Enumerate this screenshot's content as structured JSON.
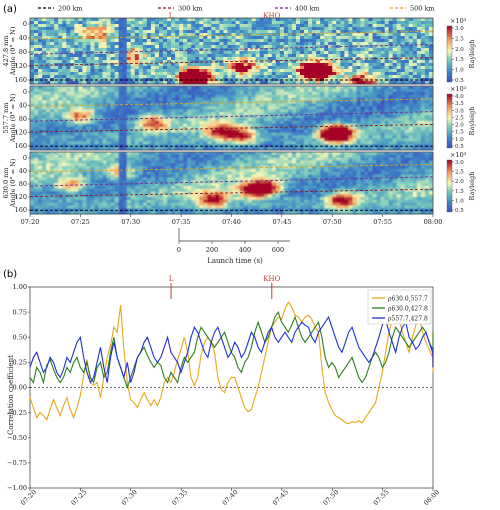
{
  "figure_labels": {
    "a": "(a)",
    "b": "(b)"
  },
  "chart_data": [
    {
      "type": "heatmap",
      "panel": "(a)",
      "legend": [
        {
          "label": "200 km",
          "color": "#000000"
        },
        {
          "label": "300 km",
          "color": "#8b1a1a"
        },
        {
          "label": "400 km",
          "color": "#7b2a8e"
        },
        {
          "label": "500 km",
          "color": "#e6a11a"
        }
      ],
      "markers": [
        {
          "label": "L",
          "time": "07:34"
        },
        {
          "label": "KHO",
          "time": "07:44"
        }
      ],
      "x_time_ticks": [
        "07:20",
        "07:25",
        "07:30",
        "07:35",
        "07:40",
        "07:45",
        "07:50",
        "07:55",
        "08:00"
      ],
      "y_ticks": [
        "0",
        "40",
        "80",
        "120",
        "160"
      ],
      "subplots": [
        {
          "ylabel": "427.8 nm\nAngle (0° = N)",
          "cbar_label": "Rayleigh",
          "cbar_exp": "×10³",
          "cbar_ticks": [
            "0.5",
            "1.0",
            "1.5",
            "2.0",
            "2.5",
            "3.0"
          ]
        },
        {
          "ylabel": "557.7 nm\nAngle (0° = N)",
          "cbar_label": "Rayleigh",
          "cbar_exp": "×10³",
          "cbar_ticks": [
            "0.5",
            "1.0",
            "1.5",
            "2.0",
            "2.5",
            "3.0",
            "3.5",
            "4.0"
          ]
        },
        {
          "ylabel": "630.0 nm\nAngle (0° = N)",
          "cbar_label": "Rayleigh",
          "cbar_exp": "×10³",
          "cbar_ticks": [
            "0.5",
            "1.0",
            "1.5",
            "2.0",
            "2.5",
            "3.0"
          ]
        }
      ],
      "launch_axis": {
        "label": "Launch time (s)",
        "ticks": [
          "0",
          "200",
          "400",
          "600"
        ]
      }
    },
    {
      "type": "line",
      "panel": "(b)",
      "ylabel": "Correlation coefficient",
      "ylim": [
        -1.0,
        1.0
      ],
      "y_ticks": [
        "−1.00",
        "−0.75",
        "−0.50",
        "−0.25",
        "0.00",
        "0.25",
        "0.50",
        "0.75",
        "1.00"
      ],
      "x_time_ticks": [
        "07:20",
        "07:25",
        "07:30",
        "07:35",
        "07:40",
        "07:45",
        "07:50",
        "07:55",
        "08:00"
      ],
      "xlim_minutes": [
        0,
        40
      ],
      "markers": [
        {
          "label": "L",
          "time": "07:34"
        },
        {
          "label": "KHO",
          "time": "07:44"
        }
      ],
      "legend_position": "top-right",
      "x_step_minutes": 0.333,
      "series": [
        {
          "name": "ρ630.0,557.7",
          "color": "#e6a81a",
          "values": [
            -0.1,
            -0.2,
            -0.3,
            -0.25,
            -0.28,
            -0.32,
            -0.22,
            -0.12,
            -0.2,
            -0.28,
            -0.18,
            -0.1,
            -0.22,
            -0.3,
            -0.2,
            -0.08,
            0.12,
            0.28,
            0.05,
            0.02,
            0.05,
            -0.1,
            0.1,
            0.3,
            0.42,
            0.6,
            0.55,
            0.82,
            0.38,
            0.05,
            -0.12,
            -0.15,
            -0.2,
            -0.12,
            -0.05,
            -0.12,
            -0.18,
            -0.12,
            -0.18,
            -0.1,
            0.05,
            0.1,
            0.05,
            0.15,
            0.28,
            0.38,
            0.5,
            0.35,
            0.1,
            0.02,
            0.1,
            0.32,
            0.45,
            0.5,
            0.45,
            0.35,
            0.1,
            -0.02,
            -0.05,
            0.05,
            0.1,
            0.1,
            0.0,
            -0.1,
            -0.2,
            -0.24,
            -0.22,
            -0.1,
            0.0,
            0.15,
            0.3,
            0.45,
            0.6,
            0.65,
            0.7,
            0.68,
            0.78,
            0.85,
            0.8,
            0.72,
            0.7,
            0.65,
            0.7,
            0.72,
            0.68,
            0.6,
            0.55,
            0.2,
            -0.05,
            -0.15,
            -0.22,
            -0.28,
            -0.3,
            -0.32,
            -0.35,
            -0.36,
            -0.34,
            -0.35,
            -0.33,
            -0.35,
            -0.3,
            -0.25,
            -0.2,
            -0.15,
            0.0,
            0.15,
            0.35,
            0.55,
            0.68,
            0.72,
            0.68,
            0.55,
            0.45,
            0.35,
            0.5,
            0.62,
            0.7,
            0.55,
            0.45,
            0.38,
            0.3,
            0.15,
            0.3,
            0.45,
            0.55,
            0.5,
            0.45,
            0.4,
            0.38
          ]
        },
        {
          "name": "ρ630.0,427.8",
          "color": "#2e7d1e",
          "values": [
            0.1,
            0.05,
            0.2,
            0.15,
            0.05,
            0.22,
            0.28,
            0.18,
            0.1,
            0.05,
            0.1,
            0.2,
            0.15,
            0.25,
            0.3,
            0.2,
            0.15,
            0.25,
            0.1,
            0.05,
            0.2,
            0.25,
            0.1,
            0.15,
            0.35,
            0.5,
            0.3,
            0.2,
            0.1,
            0.0,
            0.1,
            0.2,
            0.3,
            0.35,
            0.4,
            0.32,
            0.25,
            0.2,
            0.25,
            0.22,
            0.1,
            0.05,
            0.15,
            0.1,
            0.05,
            0.2,
            0.3,
            0.25,
            0.3,
            0.35,
            0.5,
            0.6,
            0.55,
            0.5,
            0.45,
            0.4,
            0.45,
            0.5,
            0.55,
            0.45,
            0.35,
            0.3,
            0.2,
            0.15,
            0.25,
            0.3,
            0.4,
            0.55,
            0.65,
            0.55,
            0.45,
            0.5,
            0.6,
            0.7,
            0.75,
            0.65,
            0.6,
            0.55,
            0.62,
            0.7,
            0.6,
            0.5,
            0.45,
            0.5,
            0.55,
            0.6,
            0.65,
            0.5,
            0.3,
            0.2,
            0.25,
            0.2,
            0.1,
            0.15,
            0.2,
            0.25,
            0.3,
            0.2,
            0.1,
            0.05,
            0.1,
            0.2,
            0.3,
            0.35,
            0.3,
            0.2,
            0.25,
            0.35,
            0.5,
            0.6,
            0.55,
            0.5,
            0.45,
            0.4,
            0.45,
            0.5,
            0.55,
            0.6,
            0.55,
            0.45,
            0.38,
            0.4,
            0.45,
            0.5,
            0.55,
            0.45,
            0.4,
            0.45,
            0.48
          ]
        },
        {
          "name": "ρ557.7,427.8",
          "color": "#1f2fd6",
          "values": [
            0.2,
            0.3,
            0.35,
            0.25,
            0.15,
            0.2,
            0.3,
            0.25,
            0.15,
            0.1,
            0.18,
            0.3,
            0.25,
            0.35,
            0.45,
            0.5,
            0.3,
            0.15,
            0.05,
            0.1,
            0.25,
            0.4,
            0.2,
            0.05,
            0.3,
            0.45,
            0.3,
            0.2,
            0.1,
            0.25,
            0.05,
            0.15,
            0.3,
            0.35,
            0.45,
            0.5,
            0.4,
            0.3,
            0.25,
            0.3,
            0.4,
            0.5,
            0.35,
            0.3,
            0.25,
            0.15,
            0.25,
            0.35,
            0.5,
            0.6,
            0.55,
            0.45,
            0.35,
            0.3,
            0.45,
            0.55,
            0.6,
            0.5,
            0.4,
            0.3,
            0.35,
            0.45,
            0.4,
            0.3,
            0.35,
            0.45,
            0.55,
            0.5,
            0.4,
            0.35,
            0.45,
            0.55,
            0.6,
            0.5,
            0.45,
            0.5,
            0.55,
            0.5,
            0.45,
            0.55,
            0.6,
            0.65,
            0.62,
            0.6,
            0.5,
            0.45,
            0.55,
            0.6,
            0.65,
            0.7,
            0.6,
            0.5,
            0.4,
            0.35,
            0.45,
            0.55,
            0.6,
            0.5,
            0.4,
            0.35,
            0.3,
            0.25,
            0.3,
            0.4,
            0.5,
            0.62,
            0.68,
            0.55,
            0.45,
            0.35,
            0.5,
            0.6,
            0.65,
            0.5,
            0.45,
            0.38,
            0.42,
            0.5,
            0.55,
            0.45,
            0.35,
            0.28,
            0.35,
            0.4,
            0.3,
            0.2,
            0.35,
            0.4,
            0.35
          ]
        }
      ]
    }
  ]
}
